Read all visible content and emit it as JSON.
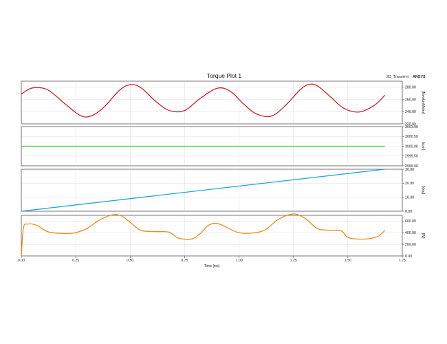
{
  "header": {
    "title": "Torque Plot 1",
    "source": "2D_Transient",
    "brand": "ANSYS"
  },
  "chart_data": {
    "type": "line",
    "shared_x": {
      "label": "Time [ms]",
      "xlim": [
        0,
        1.75
      ],
      "ticks": [
        "0.00",
        "0.25",
        "0.50",
        "0.75",
        "1.00",
        "1.25",
        "1.50",
        "1.75"
      ]
    },
    "grid": true,
    "colors": [
      "#d0202a",
      "#33cc33",
      "#1fa3d6",
      "#ee8b14"
    ],
    "subplots": [
      {
        "ylabel": "[NewtonMeter]",
        "ylim": [
          220,
          290
        ],
        "yticks": [
          "280.00",
          "260.00",
          "240.00",
          "220.00"
        ],
        "series": [
          {
            "color": "#d0202a",
            "x": [
              0,
              0.05,
              0.12,
              0.2,
              0.27,
              0.32,
              0.38,
              0.45,
              0.5,
              0.55,
              0.62,
              0.68,
              0.75,
              0.82,
              0.9,
              0.96,
              1.02,
              1.08,
              1.15,
              1.22,
              1.28,
              1.32,
              1.36,
              1.42,
              1.48,
              1.55,
              1.62,
              1.67
            ],
            "y": [
              268.8,
              278.8,
              276.1,
              253.0,
              233.8,
              232.8,
              247.5,
              274.9,
              284.3,
              279.1,
              256.1,
              241.8,
              241.9,
              261.3,
              278.4,
              273.4,
              252.9,
              236.2,
              232.8,
              252.6,
              275.8,
              284.6,
              282.3,
              264.4,
              245.9,
              239.4,
              250.0,
              267.0
            ]
          }
        ]
      },
      {
        "ylabel": "[rpm]",
        "ylim": [
          2999,
          3001
        ],
        "yticks": [
          "3001.00",
          "3000.50",
          "3000.00",
          "2999.50",
          "2999.00"
        ],
        "series": [
          {
            "color": "#33cc33",
            "x": [
              0,
              1.67
            ],
            "y": [
              3000.0,
              3000.0
            ]
          }
        ]
      },
      {
        "ylabel": "[deg]",
        "ylim": [
          0,
          30
        ],
        "yticks": [
          "30.00",
          "20.00",
          "10.00",
          "0.00"
        ],
        "series": [
          {
            "color": "#1fa3d6",
            "x": [
              0,
              1.67
            ],
            "y": [
              0,
              30
            ]
          }
        ]
      },
      {
        "ylabel": "[W]",
        "ylim": [
          0,
          700
        ],
        "yticks": [
          "600.00",
          "400.00",
          "200.00",
          "0.00"
        ],
        "series": [
          {
            "color": "#ee8b14",
            "x": [
              0,
              0.01,
              0.03,
              0.07,
              0.12,
              0.18,
              0.24,
              0.3,
              0.36,
              0.42,
              0.46,
              0.5,
              0.55,
              0.62,
              0.68,
              0.72,
              0.78,
              0.82,
              0.86,
              0.9,
              0.95,
              1.0,
              1.06,
              1.12,
              1.18,
              1.24,
              1.28,
              1.32,
              1.36,
              1.42,
              1.47,
              1.5,
              1.55,
              1.6,
              1.64,
              1.67
            ],
            "y": [
              0,
              490,
              550,
              530,
              420,
              390,
              395,
              470,
              620,
              710,
              690,
              580,
              440,
              420,
              410,
              310,
              290,
              380,
              530,
              560,
              480,
              400,
              395,
              450,
              630,
              720,
              700,
              600,
              470,
              440,
              430,
              320,
              290,
              300,
              340,
              440
            ]
          }
        ]
      }
    ]
  }
}
